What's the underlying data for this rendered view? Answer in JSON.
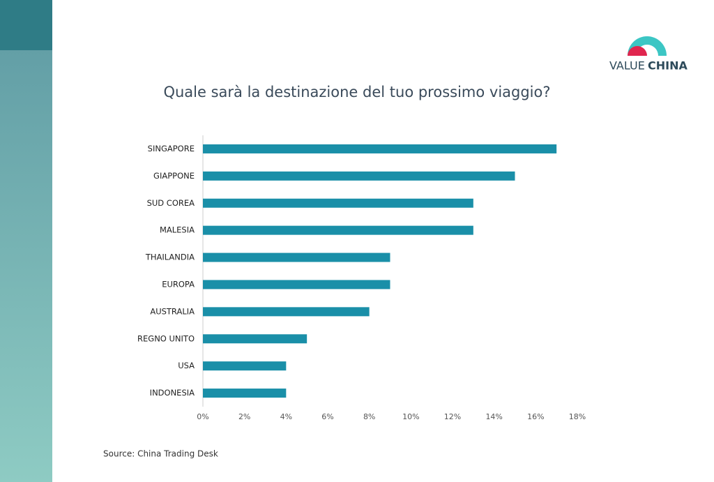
{
  "brand": {
    "word1": "VALUE",
    "word2": "CHINA"
  },
  "chart_data": {
    "type": "hbar",
    "title": "Quale sarà la destinazione del tuo prossimo viaggio?",
    "categories": [
      "SINGAPORE",
      "GIAPPONE",
      "SUD COREA",
      "MALESIA",
      "THAILANDIA",
      "EUROPA",
      "AUSTRALIA",
      "REGNO UNITO",
      "USA",
      "INDONESIA"
    ],
    "values": [
      17,
      15,
      13,
      13,
      9,
      9,
      8,
      5,
      4,
      4
    ],
    "color": "#1a8fa8",
    "xlim": [
      0,
      18
    ],
    "xticks": [
      {
        "value": 0,
        "label": "0%"
      },
      {
        "value": 2,
        "label": "2%"
      },
      {
        "value": 4,
        "label": "4%"
      },
      {
        "value": 6,
        "label": "6%"
      },
      {
        "value": 8,
        "label": "8%"
      },
      {
        "value": 10,
        "label": "10%"
      },
      {
        "value": 12,
        "label": "12%"
      },
      {
        "value": 14,
        "label": "14%"
      },
      {
        "value": 16,
        "label": "16%"
      },
      {
        "value": 18,
        "label": "18%"
      }
    ],
    "source": "Source:  China Trading Desk"
  }
}
